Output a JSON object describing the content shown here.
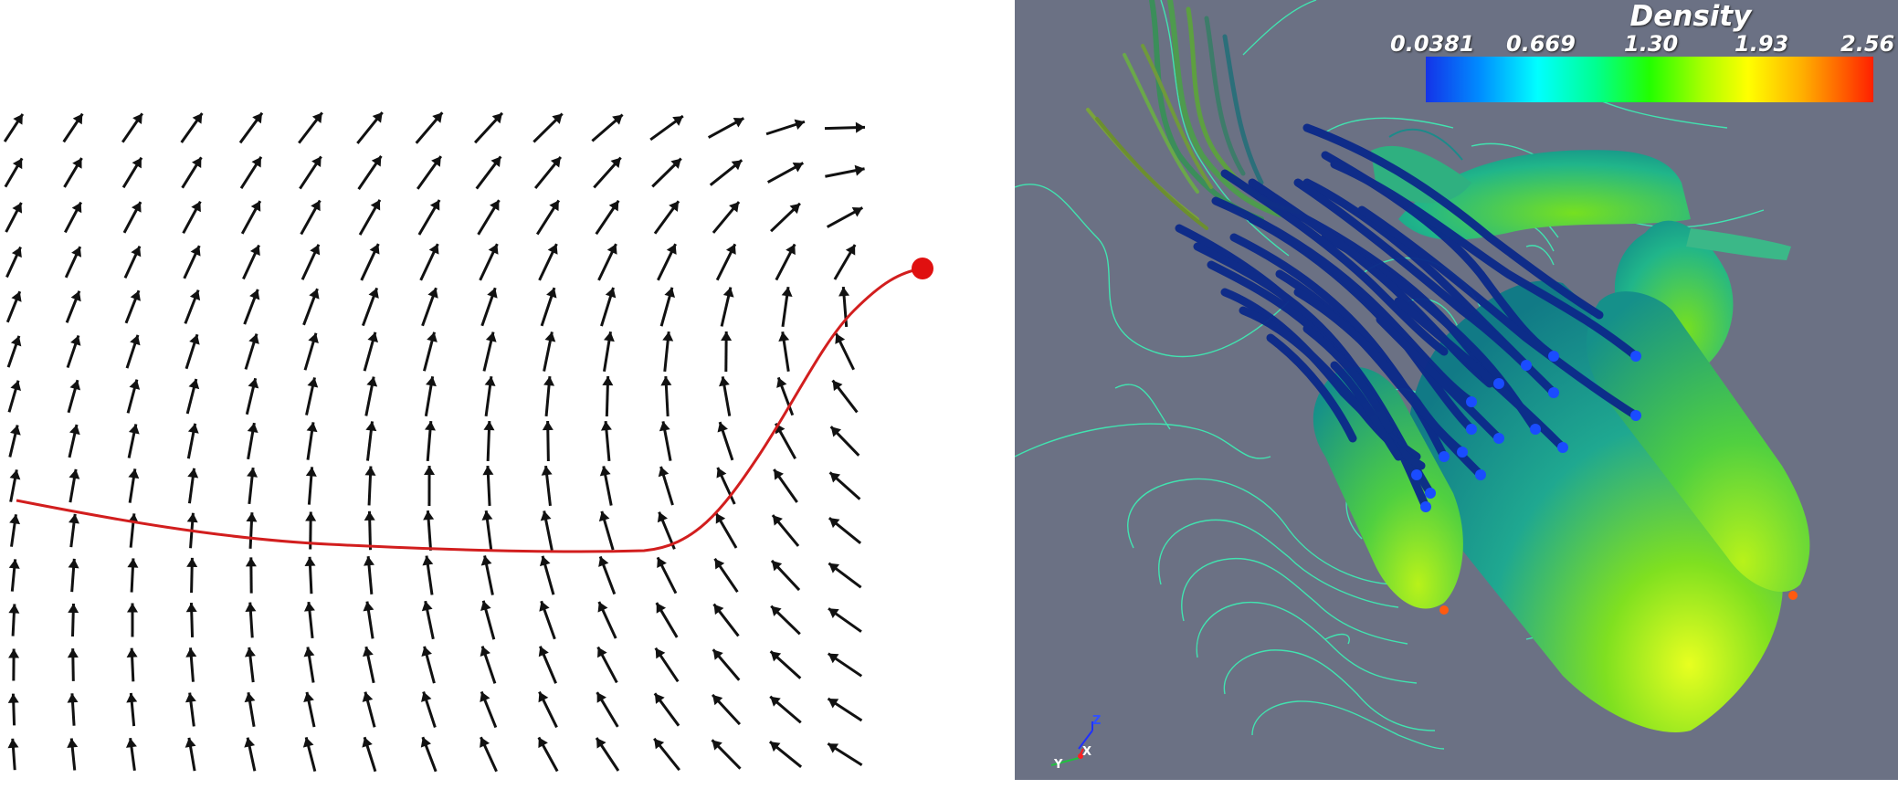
{
  "colorbar": {
    "title": "Density",
    "ticks": [
      "0.0381",
      "0.669",
      "1.30",
      "1.93",
      "2.56"
    ],
    "colors": [
      "#1433e8",
      "#00a8ff",
      "#00ffff",
      "#00ff80",
      "#33ff00",
      "#aaff00",
      "#ffff00",
      "#ffbb00",
      "#ff7700",
      "#ff2a00"
    ]
  },
  "axes": {
    "z": "Z",
    "y": "Y",
    "x": "X"
  },
  "colors": {
    "background_left": "#ffffff",
    "background_right": "#6b7184",
    "arrow": "#111111",
    "streamline": "#d21e1e",
    "seed_point": "#e01010",
    "contour": "#41e3b0",
    "tube": "#0c2a8a"
  }
}
